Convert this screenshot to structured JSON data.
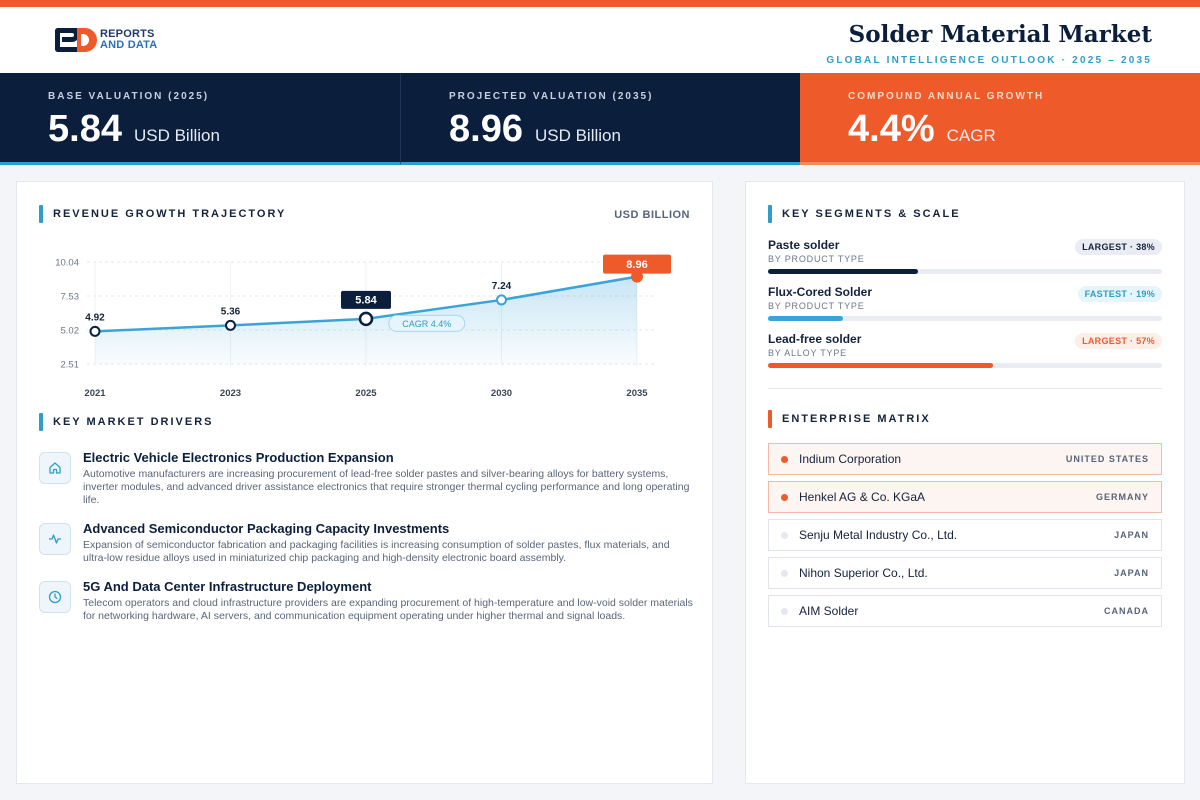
{
  "header": {
    "logo_line1": "REPORTS",
    "logo_line2": "AND DATA",
    "title": "Solder Material Market",
    "subtitle": "GLOBAL INTELLIGENCE OUTLOOK  ·  2025 – 2035"
  },
  "kpis": [
    {
      "label": "BASE VALUATION (2025)",
      "value": "5.84",
      "unit": "USD Billion"
    },
    {
      "label": "PROJECTED VALUATION (2035)",
      "value": "8.96",
      "unit": "USD Billion"
    },
    {
      "label": "COMPOUND ANNUAL GROWTH",
      "value": "4.4%",
      "unit": "CAGR"
    }
  ],
  "chart_section": {
    "title": "REVENUE GROWTH TRAJECTORY",
    "unit": "USD BILLION"
  },
  "chart_data": {
    "type": "area",
    "title": "",
    "categories": [
      "2021",
      "2023",
      "2025",
      "2030",
      "2035"
    ],
    "values": [
      4.92,
      5.36,
      5.84,
      7.24,
      8.96
    ],
    "value_labels": [
      "4.92",
      "5.36",
      "5.84",
      "7.24",
      "8.96"
    ],
    "y_ticks": [
      "10.04",
      "7.53",
      "5.02",
      "2.51"
    ],
    "y_tick_values": [
      10.04,
      7.53,
      5.02,
      2.51
    ],
    "ylim": [
      2.51,
      10.04
    ],
    "highlight_base": "2025",
    "highlight_projected": "2035",
    "annotation": "CAGR 4.4%",
    "grid": true,
    "colors": {
      "line": "#3aa3d8",
      "base": "#0b1f3d",
      "projected": "#ef5a2a"
    }
  },
  "drivers_section": {
    "title": "KEY MARKET DRIVERS"
  },
  "drivers": [
    {
      "icon": "home-icon",
      "title": "Electric Vehicle Electronics Production Expansion",
      "text": "Automotive manufacturers are increasing procurement of lead-free solder pastes and silver-bearing alloys for battery systems, inverter modules, and advanced driver assistance electronics that require stronger thermal cycling performance and long operating life."
    },
    {
      "icon": "activity-icon",
      "title": "Advanced Semiconductor Packaging Capacity Investments",
      "text": "Expansion of semiconductor fabrication and packaging facilities is increasing consumption of solder pastes, flux materials, and ultra-low residue alloys used in miniaturized chip packaging and high-density electronic board assembly."
    },
    {
      "icon": "clock-icon",
      "title": "5G And Data Center Infrastructure Deployment",
      "text": "Telecom operators and cloud infrastructure providers are expanding procurement of high-temperature and low-void solder materials for networking hardware, AI servers, and communication equipment operating under higher thermal and signal loads."
    }
  ],
  "segments_section": {
    "title": "KEY SEGMENTS & SCALE"
  },
  "segments": [
    {
      "name": "Paste solder",
      "sub": "BY PRODUCT TYPE",
      "badge": "LARGEST · 38%",
      "share": 0.38,
      "bar_color": "#0b1f3d",
      "badge_bg": "#e9edf3",
      "badge_color": "#14223c"
    },
    {
      "name": "Flux-Cored Solder",
      "sub": "BY PRODUCT TYPE",
      "badge": "FASTEST · 19%",
      "share": 0.19,
      "bar_color": "#3aa3d8",
      "badge_bg": "#e6f4fb",
      "badge_color": "#2f9dc9"
    },
    {
      "name": "Lead-free solder",
      "sub": "BY ALLOY TYPE",
      "badge": "LARGEST · 57%",
      "share": 0.57,
      "bar_color": "#ef5a2a",
      "badge_bg": "#fdeee7",
      "badge_color": "#ef5a2a"
    }
  ],
  "matrix_section": {
    "title": "ENTERPRISE MATRIX"
  },
  "enterprises": [
    {
      "name": "Indium Corporation",
      "country": "UNITED STATES",
      "highlight": true
    },
    {
      "name": "Henkel AG & Co. KGaA",
      "country": "GERMANY",
      "highlight": true
    },
    {
      "name": "Senju Metal Industry Co., Ltd.",
      "country": "JAPAN",
      "highlight": false
    },
    {
      "name": "Nihon Superior Co., Ltd.",
      "country": "JAPAN",
      "highlight": false
    },
    {
      "name": "AIM Solder",
      "country": "CANADA",
      "highlight": false
    }
  ]
}
